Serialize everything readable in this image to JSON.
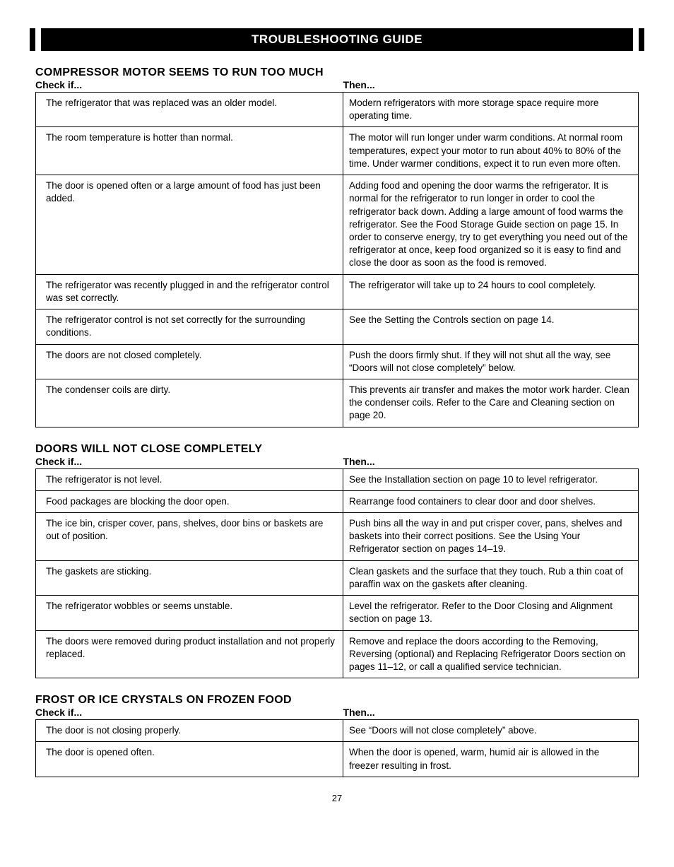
{
  "banner": "TROUBLESHOOTING GUIDE",
  "col_check": "Check if...",
  "col_then": "Then...",
  "sections": [
    {
      "title": "COMPRESSOR MOTOR SEEMS TO RUN TOO MUCH",
      "rows": [
        {
          "check": "The refrigerator that was replaced was an older model.",
          "then": "Modern refrigerators with more storage space require more operating time."
        },
        {
          "check": "The room temperature is hotter than normal.",
          "then": "The motor will run longer under warm conditions. At normal room temperatures, expect your motor to run about 40% to 80% of the time. Under warmer conditions, expect it to run even more often."
        },
        {
          "check": "The door is opened often or a large amount of food has just been added.",
          "then": "Adding food and opening the door warms the refrigerator. It is normal for the refrigerator to run longer in order to cool the refrigerator back down. Adding a large amount of food warms the refrigerator. See the Food Storage Guide section on page 15. In order to conserve energy, try to get everything you need out of the refrigerator at once, keep food organized so it is easy to find and close the door as soon as the food is removed."
        },
        {
          "check": "The refrigerator was recently plugged in and the refrigerator control was set correctly.",
          "then": "The refrigerator will take up to 24 hours to cool completely."
        },
        {
          "check": "The refrigerator control is not set correctly for the surrounding conditions.",
          "then": "See the Setting the Controls section on page 14."
        },
        {
          "check": "The doors are not closed completely.",
          "then": "Push the doors firmly shut. If they will not shut all the way, see “Doors will not close completely” below."
        },
        {
          "check": "The condenser coils are dirty.",
          "then": "This prevents air transfer and makes the motor work harder. Clean the condenser coils. Refer to the Care and Cleaning section on page 20."
        }
      ]
    },
    {
      "title": "DOORS WILL NOT CLOSE COMPLETELY",
      "rows": [
        {
          "check": "The refrigerator is not level.",
          "then": "See the Installation section on page 10 to level refrigerator."
        },
        {
          "check": "Food packages are blocking the door open.",
          "then": "Rearrange food containers to clear door and door shelves."
        },
        {
          "check": "The ice bin, crisper cover, pans, shelves, door bins or baskets are out of position.",
          "then": "Push bins all the way in and put crisper cover, pans, shelves and baskets into their correct positions. See the Using Your Refrigerator section on pages 14–19."
        },
        {
          "check": "The gaskets are sticking.",
          "then": "Clean gaskets and the surface that they touch. Rub a thin coat of paraffin wax on the gaskets after cleaning."
        },
        {
          "check": "The refrigerator wobbles or seems unstable.",
          "then": "Level the refrigerator. Refer to the Door Closing and Alignment section on page 13."
        },
        {
          "check": "The doors were removed during product installation and not properly replaced.",
          "then": "Remove and replace the doors according to the Removing, Reversing (optional) and Replacing Refrigerator Doors section on pages 11–12, or call a qualified service technician."
        }
      ]
    },
    {
      "title": "FROST OR ICE CRYSTALS ON FROZEN FOOD",
      "rows": [
        {
          "check": "The door is not closing properly.",
          "then": "See “Doors will not close completely” above."
        },
        {
          "check": "The door is opened often.",
          "then": "When the door is opened, warm, humid air is allowed in the freezer resulting in frost."
        }
      ]
    }
  ],
  "page_number": "27"
}
